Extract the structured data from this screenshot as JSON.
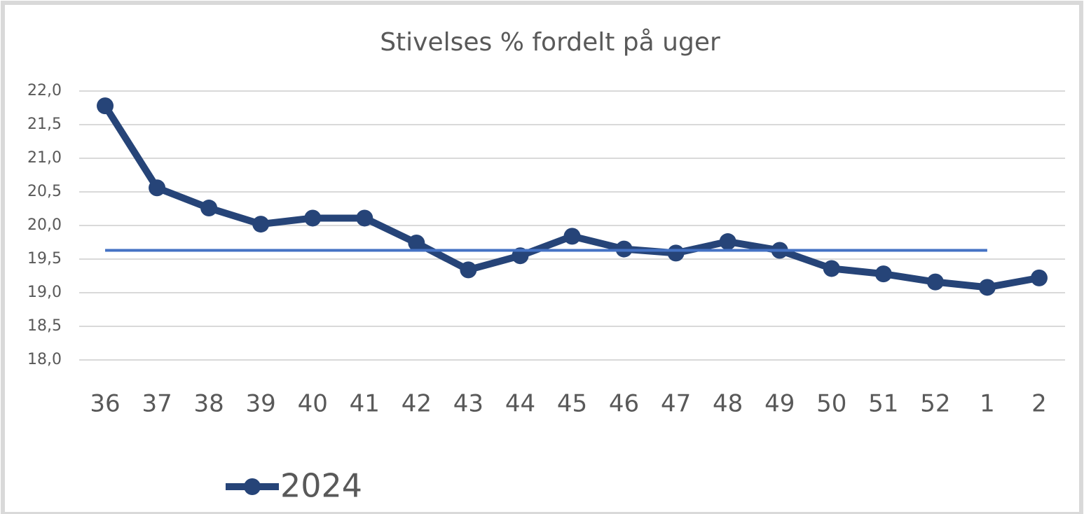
{
  "chart_data": {
    "type": "line",
    "title": "Stivelses % fordelt på uger",
    "categories": [
      "36",
      "37",
      "38",
      "39",
      "40",
      "41",
      "42",
      "43",
      "44",
      "45",
      "46",
      "47",
      "48",
      "49",
      "50",
      "51",
      "52",
      "1",
      "2"
    ],
    "series": [
      {
        "name": "2024",
        "color": "#264478",
        "values": [
          21.78,
          20.56,
          20.26,
          20.02,
          20.11,
          20.11,
          19.74,
          19.34,
          19.55,
          19.84,
          19.65,
          19.59,
          19.76,
          19.63,
          19.36,
          19.28,
          19.16,
          19.08,
          19.22
        ]
      },
      {
        "color": "#4472c4",
        "values": [
          19.63,
          19.63,
          19.63,
          19.63,
          19.63,
          19.63,
          19.63,
          19.63,
          19.63,
          19.63,
          19.63,
          19.63,
          19.63,
          19.63,
          19.63,
          19.63,
          19.63,
          19.63,
          null
        ]
      }
    ],
    "ylim": [
      18,
      22
    ],
    "yticks": [
      {
        "value": 18,
        "label": "18,0"
      },
      {
        "value": 18.5,
        "label": "18,5"
      },
      {
        "value": 19,
        "label": "19,0"
      },
      {
        "value": 19.5,
        "label": "19,5"
      },
      {
        "value": 20,
        "label": "20,0"
      },
      {
        "value": 20.5,
        "label": "20,5"
      },
      {
        "value": 21,
        "label": "21,0"
      },
      {
        "value": 21.5,
        "label": "21,5"
      },
      {
        "value": 22,
        "label": "22,0"
      }
    ],
    "grid": true,
    "legend": "bottom"
  }
}
